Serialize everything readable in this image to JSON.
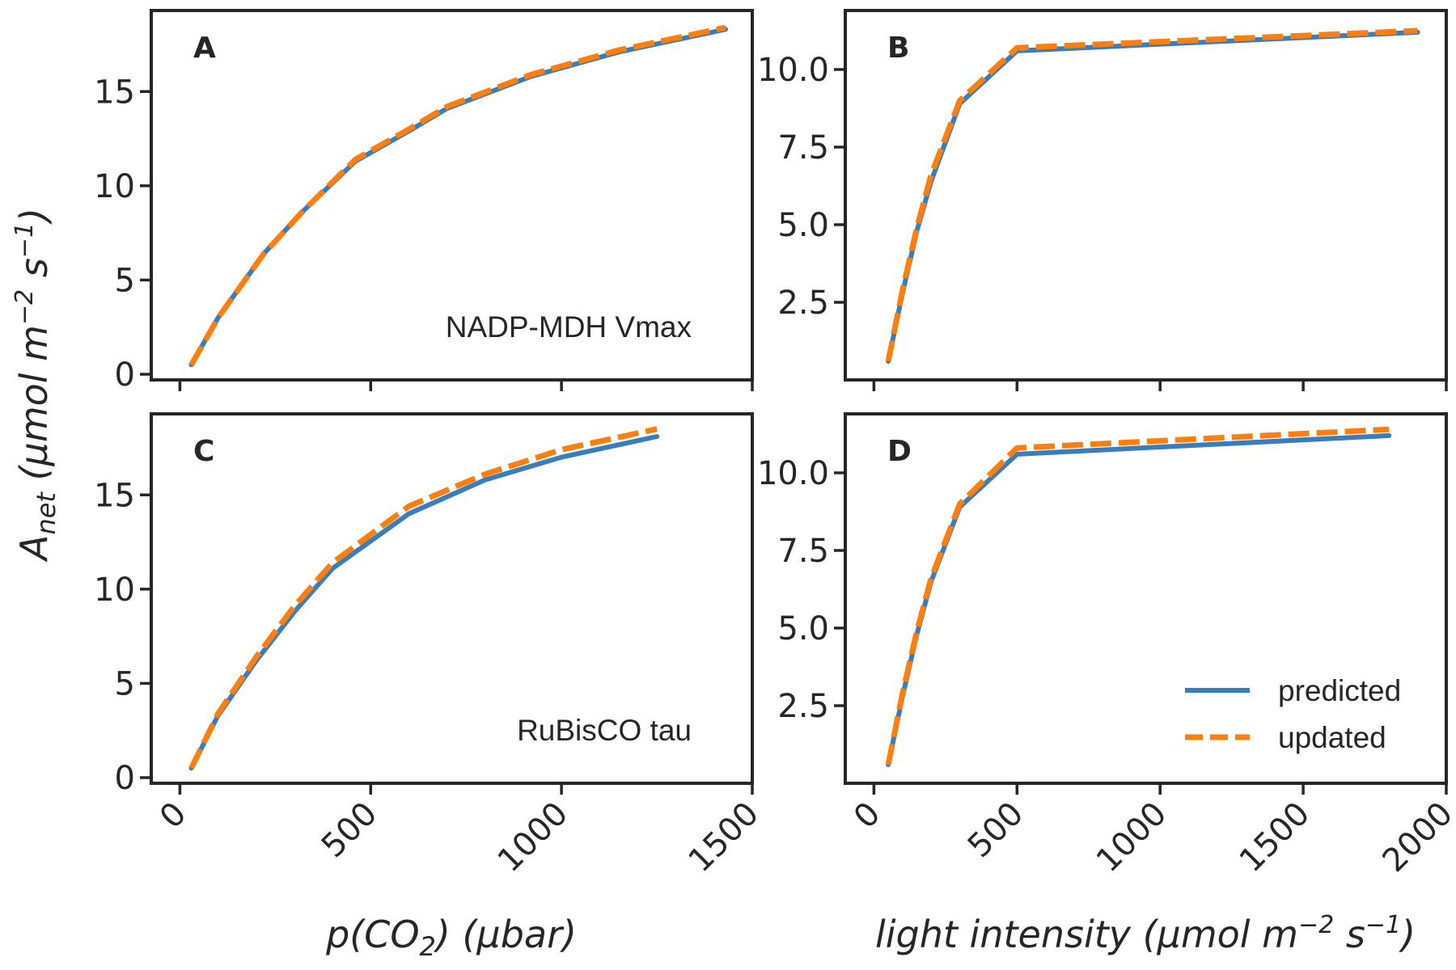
{
  "chart_data": [
    {
      "panel": "A",
      "type": "line",
      "annotation": "NADP-MDH Vmax",
      "xlim": [
        -75,
        1500
      ],
      "ylim": [
        -0.3,
        19.3
      ],
      "xticks": [
        "0",
        "500",
        "1000",
        "1500"
      ],
      "xtick_values": [
        0,
        500,
        1000,
        1500
      ],
      "show_xticklabels": false,
      "yticks": [
        "0",
        "5",
        "10",
        "15"
      ],
      "ytick_values": [
        0,
        5,
        10,
        15
      ],
      "series": [
        {
          "name": "predicted",
          "color": "#3a7dbf",
          "dashed": false,
          "x": [
            30,
            100,
            220,
            320,
            460,
            600,
            700,
            920,
            1150,
            1430
          ],
          "y": [
            0.5,
            3.0,
            6.4,
            8.6,
            11.3,
            12.9,
            14.1,
            15.8,
            17.1,
            18.3
          ]
        },
        {
          "name": "updated",
          "color": "#ff7f0e",
          "dashed": true,
          "x": [
            30,
            100,
            220,
            320,
            460,
            600,
            700,
            920,
            1150,
            1430
          ],
          "y": [
            0.5,
            3.0,
            6.4,
            8.6,
            11.4,
            13.0,
            14.2,
            15.9,
            17.2,
            18.4
          ]
        }
      ]
    },
    {
      "panel": "B",
      "type": "line",
      "annotation": "",
      "xlim": [
        -100,
        2000
      ],
      "ylim": [
        0.0,
        11.9
      ],
      "xticks": [
        "0",
        "500",
        "1000",
        "1500",
        "2000"
      ],
      "xtick_values": [
        0,
        500,
        1000,
        1500,
        2000
      ],
      "show_xticklabels": false,
      "yticks": [
        "2.5",
        "5.0",
        "7.5",
        "10.0"
      ],
      "ytick_values": [
        2.5,
        5.0,
        7.5,
        10.0
      ],
      "series": [
        {
          "name": "predicted",
          "color": "#3a7dbf",
          "dashed": false,
          "x": [
            50,
            100,
            150,
            200,
            300,
            500,
            1900
          ],
          "y": [
            0.6,
            2.8,
            4.8,
            6.4,
            8.9,
            10.6,
            11.2
          ]
        },
        {
          "name": "updated",
          "color": "#ff7f0e",
          "dashed": true,
          "x": [
            50,
            100,
            150,
            200,
            300,
            500,
            1900
          ],
          "y": [
            0.6,
            2.9,
            4.9,
            6.6,
            9.0,
            10.7,
            11.25
          ]
        }
      ]
    },
    {
      "panel": "C",
      "type": "line",
      "annotation": "RuBisCO tau",
      "xlim": [
        -75,
        1500
      ],
      "ylim": [
        -0.3,
        19.3
      ],
      "xticks": [
        "0",
        "500",
        "1000",
        "1500"
      ],
      "xtick_values": [
        0,
        500,
        1000,
        1500
      ],
      "show_xticklabels": true,
      "yticks": [
        "0",
        "5",
        "10",
        "15"
      ],
      "ytick_values": [
        0,
        5,
        10,
        15
      ],
      "xlabel": "p(CO₂) (μbar)",
      "series": [
        {
          "name": "predicted",
          "color": "#3a7dbf",
          "dashed": false,
          "x": [
            30,
            100,
            200,
            300,
            400,
            600,
            800,
            1000,
            1250
          ],
          "y": [
            0.5,
            3.3,
            6.2,
            8.8,
            11.1,
            14.0,
            15.8,
            17.0,
            18.1
          ]
        },
        {
          "name": "updated",
          "color": "#ff7f0e",
          "dashed": true,
          "x": [
            30,
            100,
            200,
            300,
            400,
            600,
            800,
            1000,
            1250
          ],
          "y": [
            0.5,
            3.4,
            6.4,
            9.1,
            11.4,
            14.4,
            16.1,
            17.4,
            18.5
          ]
        }
      ]
    },
    {
      "panel": "D",
      "type": "line",
      "annotation": "",
      "xlim": [
        -100,
        2000
      ],
      "ylim": [
        0.0,
        11.9
      ],
      "xticks": [
        "0",
        "500",
        "1000",
        "1500",
        "2000"
      ],
      "xtick_values": [
        0,
        500,
        1000,
        1500,
        2000
      ],
      "show_xticklabels": true,
      "yticks": [
        "2.5",
        "5.0",
        "7.5",
        "10.0"
      ],
      "ytick_values": [
        2.5,
        5.0,
        7.5,
        10.0
      ],
      "xlabel": "light intensity (μmol m⁻² s⁻¹)",
      "legend": {
        "position": "lower right",
        "entries": [
          "predicted",
          "updated"
        ]
      },
      "series": [
        {
          "name": "predicted",
          "color": "#3a7dbf",
          "dashed": false,
          "x": [
            50,
            100,
            150,
            200,
            300,
            500,
            1800
          ],
          "y": [
            0.6,
            2.8,
            4.8,
            6.5,
            8.9,
            10.6,
            11.2
          ]
        },
        {
          "name": "updated",
          "color": "#ff7f0e",
          "dashed": true,
          "x": [
            50,
            100,
            150,
            200,
            300,
            500,
            1800
          ],
          "y": [
            0.6,
            2.9,
            4.9,
            6.6,
            9.0,
            10.8,
            11.4
          ]
        }
      ]
    }
  ],
  "ylabel": "A_net (μmol m⁻² s⁻¹)"
}
